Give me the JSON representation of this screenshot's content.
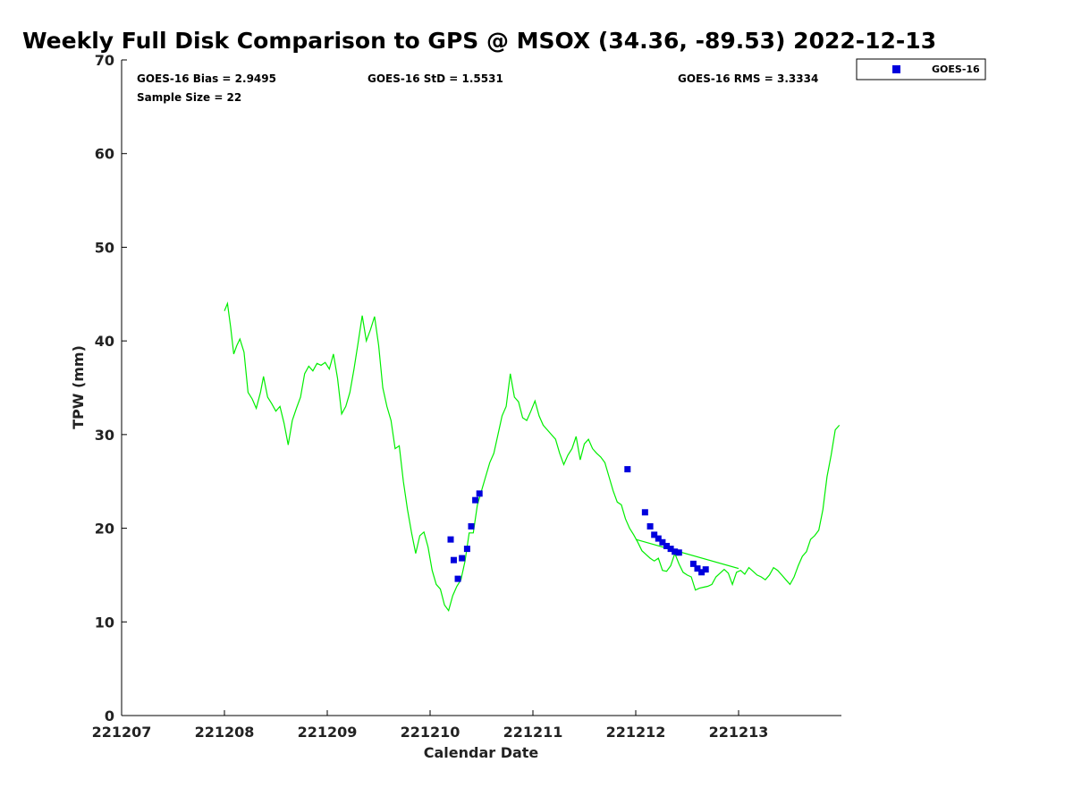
{
  "chart_data": {
    "type": "scatter",
    "title": "Weekly Full Disk Comparison to GPS @ MSOX (34.36, -89.53) 2022-12-13",
    "xlabel": "Calendar Date",
    "ylabel": "TPW (mm)",
    "xlim": [
      0,
      7.0
    ],
    "ylim": [
      0,
      70
    ],
    "x_ticks": [
      {
        "value": 0,
        "label": "221207"
      },
      {
        "value": 1,
        "label": "221208"
      },
      {
        "value": 2,
        "label": "221209"
      },
      {
        "value": 3,
        "label": "221210"
      },
      {
        "value": 4,
        "label": "221211"
      },
      {
        "value": 5,
        "label": "221212"
      },
      {
        "value": 6,
        "label": "221213"
      }
    ],
    "y_ticks": [
      0,
      10,
      20,
      30,
      40,
      50,
      60,
      70
    ],
    "stats": {
      "bias": "GOES-16 Bias = 2.9495",
      "std": "GOES-16 StD = 1.5531",
      "rms": "GOES-16 RMS = 3.3334",
      "sample": "Sample Size = 22"
    },
    "legend": {
      "label": "GOES-16",
      "position": "top-right"
    },
    "colors": {
      "gps_line": "#00ee00",
      "goes_points": "#0000dd",
      "axis": "#000000"
    },
    "series": [
      {
        "name": "GPS",
        "kind": "line",
        "x": [
          1.0,
          1.03,
          1.06,
          1.09,
          1.12,
          1.15,
          1.19,
          1.23,
          1.27,
          1.31,
          1.35,
          1.38,
          1.42,
          1.46,
          1.5,
          1.54,
          1.58,
          1.62,
          1.66,
          1.7,
          1.74,
          1.78,
          1.82,
          1.86,
          1.9,
          1.94,
          1.98,
          2.02,
          2.06,
          2.1,
          2.14,
          2.18,
          2.22,
          2.26,
          2.3,
          2.34,
          2.38,
          2.42,
          2.46,
          2.5,
          2.54,
          2.58,
          2.62,
          2.66,
          2.7,
          2.74,
          2.78,
          2.82,
          2.86,
          2.9,
          2.94,
          2.98,
          3.02,
          3.06,
          3.1,
          3.14,
          3.18,
          3.22,
          3.26,
          3.3,
          3.34,
          3.38,
          3.42,
          3.46,
          3.5,
          3.54,
          3.58,
          3.62,
          3.66,
          3.7,
          3.74,
          3.78,
          3.82,
          3.86,
          3.9,
          3.94,
          3.98,
          4.02,
          4.06,
          4.1,
          4.14,
          4.18,
          4.22,
          4.26,
          4.3,
          4.34,
          4.38,
          4.42,
          4.46,
          4.5,
          4.54,
          4.58,
          4.62,
          4.66,
          4.7,
          4.74,
          4.78,
          4.82,
          4.86,
          4.9,
          4.94,
          4.98,
          5.02,
          5.06,
          5.1,
          5.14,
          5.18,
          5.22,
          5.26,
          5.3,
          5.34,
          5.38,
          5.42,
          5.46,
          5.5,
          5.54,
          5.58,
          5.62,
          5.66,
          5.7,
          5.74,
          5.78,
          5.82,
          5.86,
          5.9,
          5.94,
          5.98,
          6.02,
          6.06,
          6.1,
          6.14,
          6.18,
          6.22,
          6.26,
          6.3,
          6.34,
          6.38,
          6.42,
          6.46,
          6.5,
          6.54,
          6.58,
          6.62,
          6.66,
          6.7,
          6.74,
          6.78,
          6.82,
          6.86,
          6.9,
          6.94,
          6.98
        ],
        "y": [
          43.2,
          44.0,
          41.5,
          38.6,
          39.5,
          40.2,
          38.8,
          34.5,
          33.8,
          32.8,
          34.5,
          36.2,
          34.0,
          33.3,
          32.5,
          33.0,
          31.2,
          28.9,
          31.5,
          32.8,
          34.0,
          36.5,
          37.3,
          36.8,
          37.6,
          37.4,
          37.7,
          37.0,
          38.6,
          36.0,
          32.2,
          33.0,
          34.5,
          37.0,
          39.8,
          42.7,
          40.0,
          41.2,
          42.6,
          39.5,
          35.0,
          33.0,
          31.5,
          28.5,
          28.8,
          25.0,
          22.0,
          19.5,
          17.3,
          19.2,
          19.6,
          18.0,
          15.5,
          14.0,
          13.5,
          11.8,
          11.2,
          12.8,
          13.8,
          14.5,
          16.5,
          19.5,
          19.5,
          22.5,
          24.0,
          25.5,
          27.0,
          28.0,
          30.0,
          32.0,
          33.0,
          36.5,
          34.0,
          33.5,
          31.8,
          31.5,
          32.5,
          33.6,
          32.0,
          31.0,
          30.5,
          30.0,
          29.5,
          28.0,
          26.8,
          27.8,
          28.5,
          29.8,
          27.3,
          29.0,
          29.5,
          28.5,
          28.0,
          27.6,
          27.0,
          25.5,
          24.0,
          22.8,
          22.5,
          21.0,
          20.0,
          19.3,
          18.5,
          17.6,
          17.2,
          16.8,
          16.5,
          16.8,
          15.5,
          15.4,
          16.0,
          17.3,
          16.2,
          15.3,
          15.0,
          14.8,
          13.4,
          13.6,
          13.7,
          13.8,
          14.0,
          14.8,
          15.2,
          15.6,
          15.2,
          14.0,
          15.3,
          15.5,
          15.1,
          15.8,
          15.4,
          15.0,
          14.8,
          14.5,
          15.0,
          15.8,
          15.5,
          15.0,
          14.5,
          14.0,
          14.8,
          16.0,
          17.0,
          17.5,
          18.8,
          19.2,
          19.8,
          22.0,
          25.5,
          27.8,
          30.5,
          31.0
        ]
      },
      {
        "name": "GPS (interpolated)",
        "kind": "line",
        "x": [
          5.0,
          6.0
        ],
        "y": [
          18.8,
          15.7
        ]
      },
      {
        "name": "GOES-16",
        "kind": "scatter",
        "x": [
          3.2,
          3.23,
          3.27,
          3.31,
          3.36,
          3.4,
          3.44,
          3.48,
          4.92,
          5.09,
          5.14,
          5.18,
          5.22,
          5.26,
          5.3,
          5.34,
          5.38,
          5.42,
          5.56,
          5.6,
          5.64,
          5.68
        ],
        "y": [
          18.8,
          16.6,
          14.6,
          16.8,
          17.8,
          20.2,
          23.0,
          23.7,
          26.3,
          21.7,
          20.2,
          19.3,
          18.9,
          18.5,
          18.1,
          17.8,
          17.5,
          17.4,
          16.2,
          15.7,
          15.3,
          15.6
        ]
      }
    ]
  }
}
